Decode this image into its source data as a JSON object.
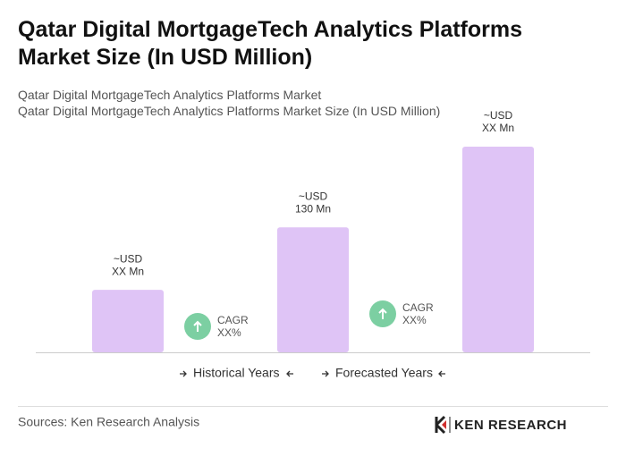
{
  "chart_data": {
    "type": "bar",
    "title": "Qatar Digital MortgageTech Analytics Platforms Market Size (In USD Million)",
    "subtitle": [
      "Qatar Digital MortgageTech Analytics Platforms Market",
      "Qatar Digital MortgageTech Analytics Platforms Market Size (In USD Million)"
    ],
    "categories": [
      null,
      null,
      null
    ],
    "values": [
      65,
      130,
      214
    ],
    "value_labels": [
      [
        "~USD",
        "XX Mn"
      ],
      [
        "~USD",
        "130 Mn"
      ],
      [
        "~USD",
        "XX Mn"
      ]
    ],
    "color": "#dfc4f6",
    "cagr": [
      [
        "CAGR",
        "XX%"
      ],
      [
        "CAGR",
        "XX%"
      ]
    ],
    "periods": [
      "Historical Years",
      "Forecasted Years"
    ],
    "source": "Sources: Ken Research Analysis",
    "logo": "KEN RESEARCH"
  }
}
